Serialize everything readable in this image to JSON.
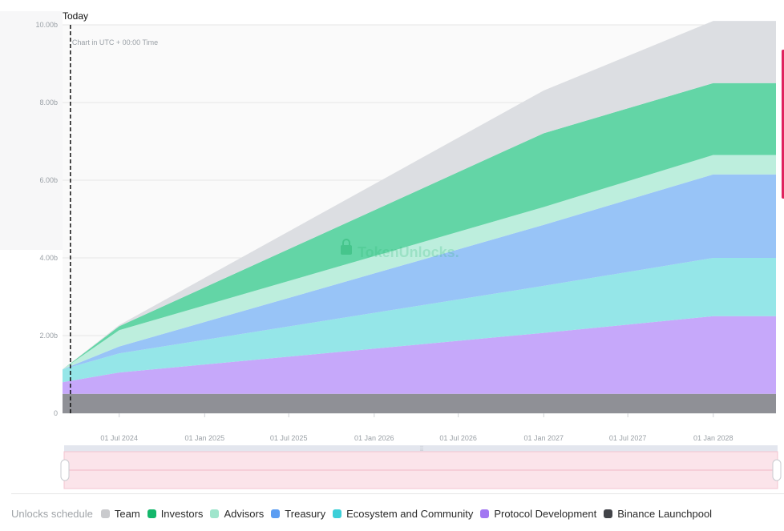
{
  "chart_data": {
    "type": "area",
    "stacked": true,
    "today_label": "Today",
    "timezone_note": "Chart in UTC + 00:00 Time",
    "watermark": "TokenUnlocks.",
    "y_tick_labels": [
      "0",
      "2.00b",
      "4.00b",
      "6.00b",
      "8.00b",
      "10.00b"
    ],
    "y_ticks": [
      0,
      2,
      4,
      6,
      8,
      10
    ],
    "ylim": [
      0,
      10
    ],
    "xlim": [
      "2024-03-01",
      "2028-05-15"
    ],
    "today_date": "2024-03-18",
    "x_tick_labels": [
      "01 Jul 2024",
      "01 Jan 2025",
      "01 Jul 2025",
      "01 Jan 2026",
      "01 Jul 2026",
      "01 Jan 2027",
      "01 Jul 2027",
      "01 Jan 2028"
    ],
    "x_ticks": [
      "2024-07-01",
      "2025-01-01",
      "2025-07-01",
      "2026-01-01",
      "2026-07-01",
      "2027-01-01",
      "2027-07-01",
      "2028-01-01"
    ],
    "x": [
      "2024-03-01",
      "2024-07-01",
      "2027-01-01",
      "2028-01-01",
      "2028-05-15"
    ],
    "series": [
      {
        "name": "Binance Launchpool",
        "color": "#8f9096",
        "values": [
          0.5,
          0.5,
          0.5,
          0.5,
          0.5
        ]
      },
      {
        "name": "Protocol Development",
        "color": "#c6a8fa",
        "values": [
          0.3,
          0.55,
          1.57,
          2.0,
          2.0
        ]
      },
      {
        "name": "Ecosystem and Community",
        "color": "#95e6e8",
        "values": [
          0.33,
          0.49,
          1.21,
          1.5,
          1.5
        ]
      },
      {
        "name": "Treasury",
        "color": "#98c4f7",
        "values": [
          0.0,
          0.18,
          1.57,
          2.15,
          2.15
        ]
      },
      {
        "name": "Advisors",
        "color": "#bdeedd",
        "values": [
          0.0,
          0.42,
          0.46,
          0.5,
          0.5
        ]
      },
      {
        "name": "Investors",
        "color": "#63d5a6",
        "values": [
          0.0,
          0.1,
          1.9,
          1.85,
          1.85
        ]
      },
      {
        "name": "Team",
        "color": "#dcdee2",
        "values": [
          0.0,
          0.03,
          1.1,
          1.6,
          1.6
        ]
      }
    ]
  },
  "legend": {
    "title": "Unlocks schedule",
    "items": [
      {
        "label": "Team",
        "color": "#c9cacd"
      },
      {
        "label": "Investors",
        "color": "#14b76b"
      },
      {
        "label": "Advisors",
        "color": "#9fe5cc"
      },
      {
        "label": "Treasury",
        "color": "#5b9df2"
      },
      {
        "label": "Ecosystem and Community",
        "color": "#3ccfd8"
      },
      {
        "label": "Protocol Development",
        "color": "#a277f2"
      },
      {
        "label": "Binance Launchpool",
        "color": "#424449"
      }
    ]
  }
}
